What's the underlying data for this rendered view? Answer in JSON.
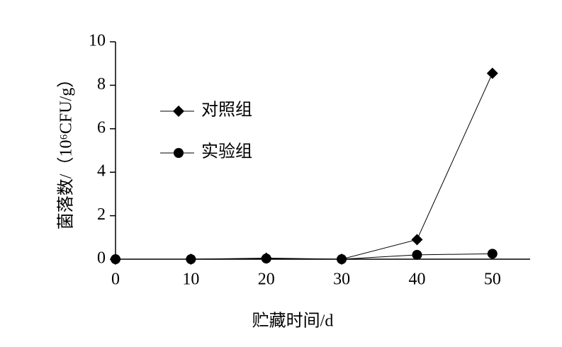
{
  "chart_data": {
    "type": "line",
    "xlabel": "贮藏时间/d",
    "ylabel": "菌落数/（10⁶CFU/g）",
    "x": [
      0,
      10,
      20,
      30,
      40,
      50
    ],
    "series": [
      {
        "name": "对照组",
        "color": "#000000",
        "marker": "diamond",
        "values": [
          0,
          0,
          0.05,
          0,
          0.9,
          8.55
        ]
      },
      {
        "name": "实验组",
        "color": "#000000",
        "marker": "circle",
        "values": [
          0,
          0,
          0.03,
          0,
          0.2,
          0.25
        ]
      }
    ],
    "xlim": [
      0,
      55
    ],
    "xticks": [
      0,
      10,
      20,
      30,
      40,
      50
    ],
    "ylim": [
      0,
      10
    ],
    "yticks": [
      0,
      2,
      4,
      6,
      8,
      10
    ],
    "grid": false,
    "legend": "upper left"
  }
}
